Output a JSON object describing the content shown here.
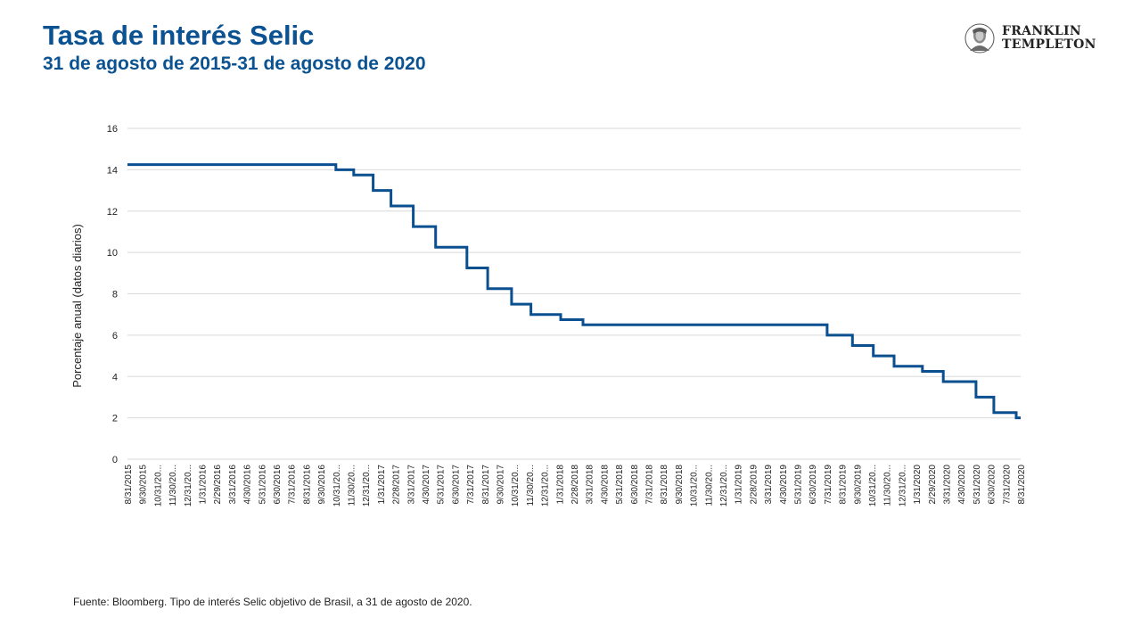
{
  "header": {
    "title": "Tasa de interés Selic",
    "subtitle": "31 de agosto de 2015-31 de agosto de 2020"
  },
  "logo": {
    "line1": "FRANKLIN",
    "line2": "TEMPLETON",
    "icon": "benjamin-franklin-portrait-icon"
  },
  "footer": {
    "source": "Fuente: Bloomberg. Tipo de interés Selic objetivo de Brasil, a 31 de agosto de 2020."
  },
  "colors": {
    "brand": "#0a5291",
    "line": "#0a4f8f",
    "grid": "#d9d9d9"
  },
  "chart_data": {
    "type": "line",
    "title": "",
    "xlabel": "",
    "ylabel": "Porcentaje anual (datos diarios)",
    "ylim": [
      0,
      16
    ],
    "yticks": [
      0,
      2,
      4,
      6,
      8,
      10,
      12,
      14,
      16
    ],
    "grid": true,
    "legend": "none",
    "categories": [
      "8/31/2015",
      "9/30/2015",
      "10/31/20...",
      "11/30/20...",
      "12/31/20...",
      "1/31/2016",
      "2/29/2016",
      "3/31/2016",
      "4/30/2016",
      "5/31/2016",
      "6/30/2016",
      "7/31/2016",
      "8/31/2016",
      "9/30/2016",
      "10/31/20...",
      "11/30/20...",
      "12/31/20...",
      "1/31/2017",
      "2/28/2017",
      "3/31/2017",
      "4/30/2017",
      "5/31/2017",
      "6/30/2017",
      "7/31/2017",
      "8/31/2017",
      "9/30/2017",
      "10/31/20...",
      "11/30/20...",
      "12/31/20...",
      "1/31/2018",
      "2/28/2018",
      "3/31/2018",
      "4/30/2018",
      "5/31/2018",
      "6/30/2018",
      "7/31/2018",
      "8/31/2018",
      "9/30/2018",
      "10/31/20...",
      "11/30/20...",
      "12/31/20...",
      "1/31/2019",
      "2/28/2019",
      "3/31/2019",
      "4/30/2019",
      "5/31/2019",
      "6/30/2019",
      "7/31/2019",
      "8/31/2019",
      "9/30/2019",
      "10/31/20...",
      "11/30/20...",
      "12/31/20...",
      "1/31/2020",
      "2/29/2020",
      "3/31/2020",
      "4/30/2020",
      "5/31/2020",
      "6/30/2020",
      "7/31/2020",
      "8/31/2020"
    ],
    "series": [
      {
        "steps": [
          {
            "x": 0.0,
            "y": 14.25
          },
          {
            "x": 14.0,
            "y": 14.0
          },
          {
            "x": 15.2,
            "y": 13.75
          },
          {
            "x": 16.5,
            "y": 13.0
          },
          {
            "x": 17.7,
            "y": 12.25
          },
          {
            "x": 19.2,
            "y": 11.25
          },
          {
            "x": 20.7,
            "y": 10.25
          },
          {
            "x": 22.8,
            "y": 9.25
          },
          {
            "x": 24.2,
            "y": 8.25
          },
          {
            "x": 25.8,
            "y": 7.5
          },
          {
            "x": 27.1,
            "y": 7.0
          },
          {
            "x": 29.1,
            "y": 6.75
          },
          {
            "x": 30.6,
            "y": 6.5
          },
          {
            "x": 47.0,
            "y": 6.0
          },
          {
            "x": 48.7,
            "y": 5.5
          },
          {
            "x": 50.1,
            "y": 5.0
          },
          {
            "x": 51.5,
            "y": 4.5
          },
          {
            "x": 53.4,
            "y": 4.25
          },
          {
            "x": 54.8,
            "y": 3.75
          },
          {
            "x": 57.0,
            "y": 3.0
          },
          {
            "x": 58.2,
            "y": 2.25
          },
          {
            "x": 59.7,
            "y": 2.0
          },
          {
            "x": 60.0,
            "y": 2.0
          }
        ]
      }
    ]
  }
}
